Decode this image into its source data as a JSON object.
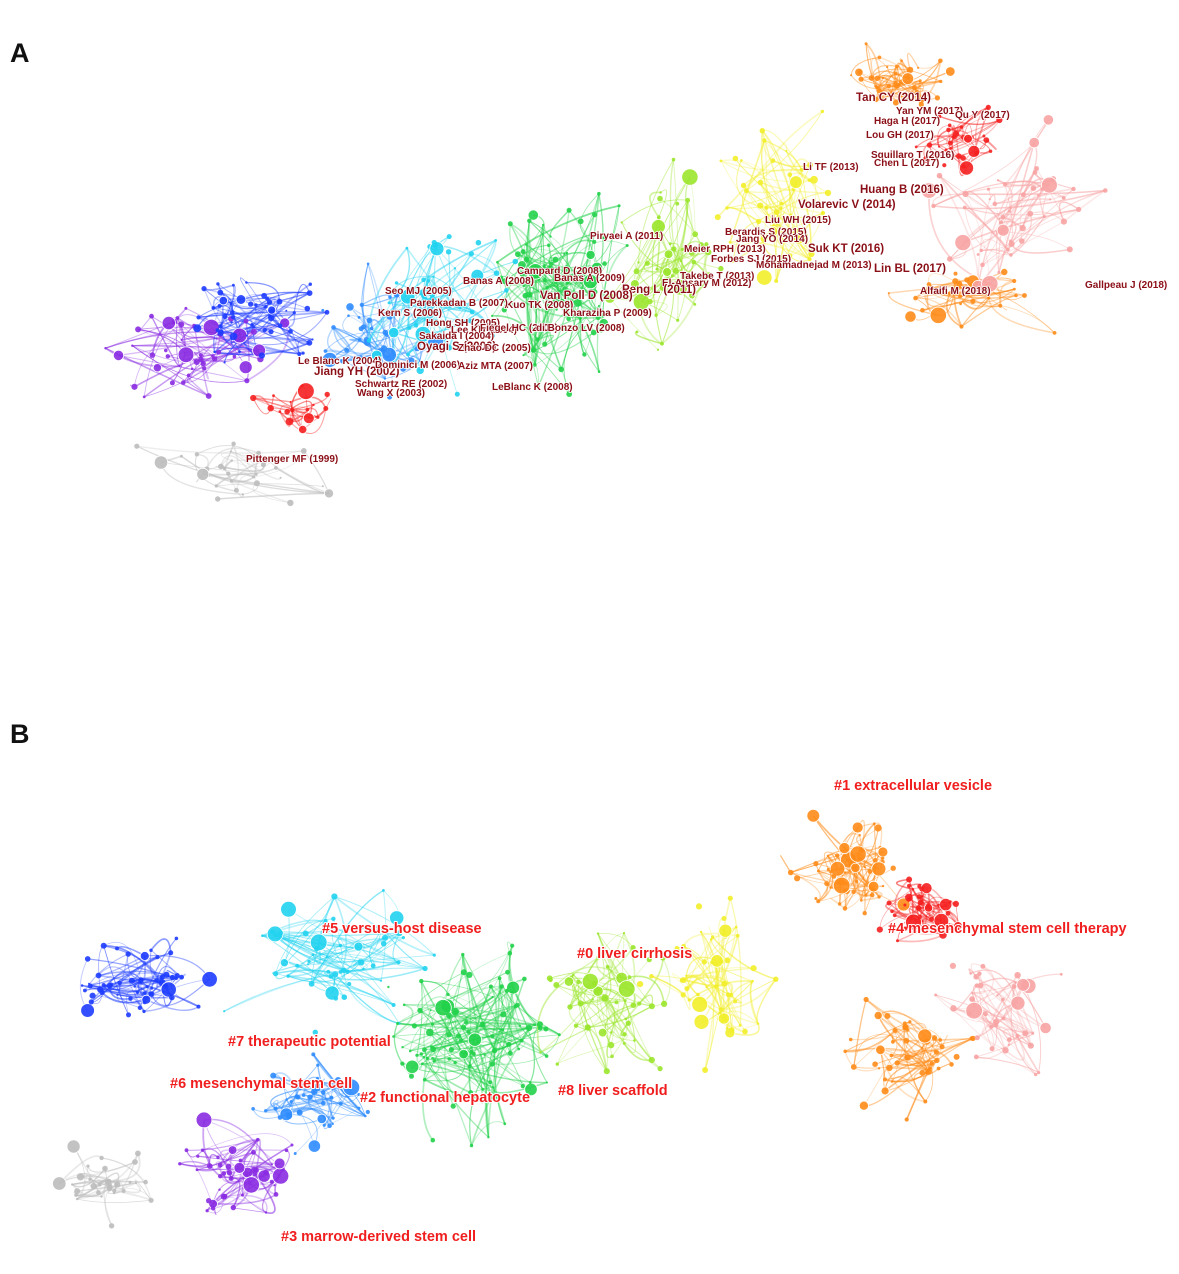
{
  "panels": [
    {
      "letter": "A",
      "reference_labels": [
        {
          "text": "Tan CY (2014)"
        },
        {
          "text": "Yan YM (2017)"
        },
        {
          "text": "Qu Y (2017)"
        },
        {
          "text": "Haga H (2017)"
        },
        {
          "text": "Lou GH (2017)"
        },
        {
          "text": "Squillaro T (2016)"
        },
        {
          "text": "Chen L (2017)"
        },
        {
          "text": "Li TF (2013)"
        },
        {
          "text": "Huang B (2016)"
        },
        {
          "text": "Volarevic V (2014)"
        },
        {
          "text": "Liu WH (2015)"
        },
        {
          "text": "Berardis S (2015)"
        },
        {
          "text": "Jang YO (2014)"
        },
        {
          "text": "Suk KT (2016)"
        },
        {
          "text": "Piryaei A (2011)"
        },
        {
          "text": "Meier RPH (2013)"
        },
        {
          "text": "Forbes SJ (2015)"
        },
        {
          "text": "Mohamadnejad M (2013)"
        },
        {
          "text": "Lin BL (2017)"
        },
        {
          "text": "Takebe T (2013)"
        },
        {
          "text": "El-Ansary M (2012)"
        },
        {
          "text": "Gallpeau J (2018)"
        },
        {
          "text": "Alfaifi M (2018)"
        },
        {
          "text": "Campard D (2008)"
        },
        {
          "text": "Banas A (2008)"
        },
        {
          "text": "Banas A (2009)"
        },
        {
          "text": "Peng L (2011)"
        },
        {
          "text": "Seo MJ (2005)"
        },
        {
          "text": "Van Poll D (2008)"
        },
        {
          "text": "Kuo TK (2008)"
        },
        {
          "text": "Parekkadan B (2007)"
        },
        {
          "text": "Kharaziha P (2009)"
        },
        {
          "text": "Kern S (2006)"
        },
        {
          "text": "Hong SH (2005)"
        },
        {
          "text": "Lee KD (2004)"
        },
        {
          "text": "Fiegel HC (2006)"
        },
        {
          "text": "di Bonzo LV (2008)"
        },
        {
          "text": "Sakaida I (2004)"
        },
        {
          "text": "Oyagi S (2006)"
        },
        {
          "text": "Le Blanc K (2004)"
        },
        {
          "text": "Zhao DC (2005)"
        },
        {
          "text": "Jiang YH (2002)"
        },
        {
          "text": "Dominici M (2006)"
        },
        {
          "text": "Aziz MTA (2007)"
        },
        {
          "text": "Schwartz RE (2002)"
        },
        {
          "text": "LeBlanc K (2008)"
        },
        {
          "text": "Wang X (2003)"
        },
        {
          "text": "Pittenger MF (1999)"
        }
      ]
    },
    {
      "letter": "B",
      "cluster_labels": [
        {
          "text": "#1 extracellular vesicle"
        },
        {
          "text": "#4 mesenchymal stem cell therapy"
        },
        {
          "text": "#5 versus-host disease"
        },
        {
          "text": "#0 liver cirrhosis"
        },
        {
          "text": "#7 therapeutic potential"
        },
        {
          "text": "#6 mesenchymal stem cell"
        },
        {
          "text": "#2 functional hepatocyte"
        },
        {
          "text": "#8 liver scaffold"
        },
        {
          "text": "#3 marrow-derived stem cell"
        }
      ]
    }
  ],
  "colors": {
    "gray": "#bdbdbd",
    "purple": "#8a2be2",
    "blue": "#1e3cff",
    "sky": "#2f8cff",
    "cyan": "#22d3f0",
    "green": "#22d14a",
    "lime": "#9be62c",
    "yellow": "#f2ee2a",
    "orange": "#ff8c1a",
    "red": "#f52020",
    "pink": "#f7a3a3",
    "label_dark_red": "#8b0f17",
    "cluster_red": "#f01e1e"
  }
}
